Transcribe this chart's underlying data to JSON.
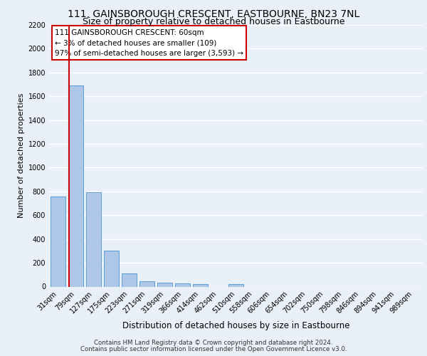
{
  "title1": "111, GAINSBOROUGH CRESCENT, EASTBOURNE, BN23 7NL",
  "title2": "Size of property relative to detached houses in Eastbourne",
  "xlabel": "Distribution of detached houses by size in Eastbourne",
  "ylabel": "Number of detached properties",
  "footer1": "Contains HM Land Registry data © Crown copyright and database right 2024.",
  "footer2": "Contains public sector information licensed under the Open Government Licence v3.0.",
  "categories": [
    "31sqm",
    "79sqm",
    "127sqm",
    "175sqm",
    "223sqm",
    "271sqm",
    "319sqm",
    "366sqm",
    "414sqm",
    "462sqm",
    "510sqm",
    "558sqm",
    "606sqm",
    "654sqm",
    "702sqm",
    "750sqm",
    "798sqm",
    "846sqm",
    "894sqm",
    "941sqm",
    "989sqm"
  ],
  "values": [
    760,
    1690,
    795,
    300,
    110,
    45,
    35,
    28,
    22,
    0,
    22,
    0,
    0,
    0,
    0,
    0,
    0,
    0,
    0,
    0,
    0
  ],
  "bar_color": "#aec6e8",
  "bar_edge_color": "#5a9fd4",
  "annotation_line_label": "111 GAINSBOROUGH CRESCENT: 60sqm",
  "annotation_text1": "← 3% of detached houses are smaller (109)",
  "annotation_text2": "97% of semi-detached houses are larger (3,593) →",
  "annotation_box_color": "#ffffff",
  "annotation_box_edgecolor": "#cc0000",
  "ylim": [
    0,
    2200
  ],
  "yticks": [
    0,
    200,
    400,
    600,
    800,
    1000,
    1200,
    1400,
    1600,
    1800,
    2000,
    2200
  ],
  "red_line_color": "#cc0000",
  "background_color": "#eaf0f8",
  "grid_color": "#ffffff",
  "title1_fontsize": 10,
  "title2_fontsize": 9,
  "ylabel_fontsize": 8,
  "xlabel_fontsize": 8.5,
  "footer_fontsize": 6.2,
  "tick_fontsize": 7
}
